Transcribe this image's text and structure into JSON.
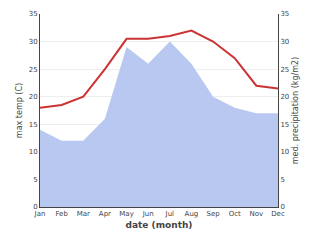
{
  "chart_data": {
    "type": "line",
    "xlabel": "date (month)",
    "ylabel": "max temp (C)",
    "y2label": "med. precipitation (kg/m2)",
    "categories": [
      "Jan",
      "Feb",
      "Mar",
      "Apr",
      "May",
      "Jun",
      "Jul",
      "Aug",
      "Sep",
      "Oct",
      "Nov",
      "Dec"
    ],
    "series": [
      {
        "type": "area",
        "color": "#b8c8f0",
        "values": [
          14,
          12,
          12,
          16,
          29,
          26,
          30,
          26,
          20,
          18,
          17,
          17
        ]
      },
      {
        "type": "line",
        "color": "#cc3333",
        "values": [
          18.0,
          18.5,
          20.0,
          25.0,
          30.5,
          30.5,
          31.0,
          32.0,
          30.0,
          27.0,
          22.0,
          21.5
        ]
      }
    ],
    "ylim": [
      0,
      35
    ],
    "yticks": [
      0,
      5,
      10,
      15,
      20,
      25,
      30,
      35
    ],
    "y2lim": [
      0,
      35
    ],
    "y2ticks": [
      0,
      5,
      10,
      15,
      20,
      25,
      30,
      35
    ],
    "grid": true
  }
}
